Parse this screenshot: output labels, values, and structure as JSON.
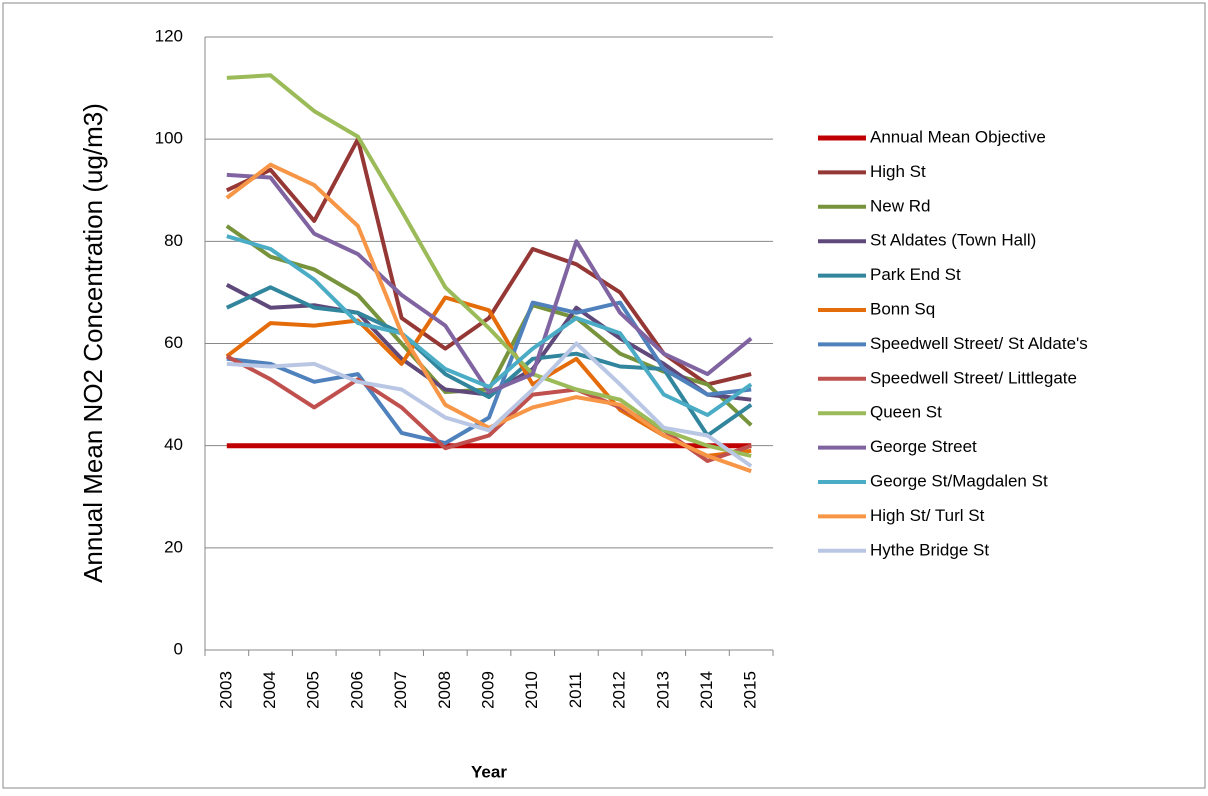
{
  "chart_data": {
    "type": "line",
    "y_label": "Annual Mean NO2 Concentration (ug/m3)",
    "x_label": "Year",
    "categories": [
      "2003",
      "2004",
      "2005",
      "2006",
      "2007",
      "2008",
      "2009",
      "2010",
      "2011",
      "2012",
      "2013",
      "2014",
      "2015"
    ],
    "ylim": [
      0,
      120
    ],
    "yticks": [
      0,
      20,
      40,
      60,
      80,
      100,
      120
    ],
    "grid": true,
    "legend": "right",
    "series": [
      {
        "name": "Annual Mean Objective",
        "color": "#c00000",
        "values": [
          40,
          40,
          40,
          40,
          40,
          40,
          40,
          40,
          40,
          40,
          40,
          40,
          40
        ]
      },
      {
        "name": "High St",
        "color": "#953735",
        "values": [
          90,
          94,
          84,
          100,
          65,
          59,
          65,
          78.5,
          75.5,
          70,
          58,
          52,
          54
        ]
      },
      {
        "name": "New Rd",
        "color": "#77933c",
        "values": [
          83,
          77,
          74.5,
          69.5,
          60,
          50.5,
          51,
          67.5,
          65,
          58,
          54.5,
          52,
          44
        ]
      },
      {
        "name": "St Aldates (Town Hall)",
        "color": "#5f497a",
        "values": [
          71.5,
          67,
          67.5,
          66,
          57,
          51,
          50,
          55,
          67,
          61,
          56,
          50,
          49
        ]
      },
      {
        "name": "Park End St",
        "color": "#31859c",
        "values": [
          67,
          71,
          67,
          66,
          62,
          54,
          49.5,
          57,
          58,
          55.5,
          55,
          42,
          48
        ]
      },
      {
        "name": "Bonn Sq",
        "color": "#e46c0a",
        "values": [
          57.5,
          64,
          63.5,
          64.5,
          56,
          69,
          66.5,
          52,
          57,
          47,
          42,
          38,
          39
        ]
      },
      {
        "name": "Speedwell Street/ St Aldate's",
        "color": "#4f81bd",
        "values": [
          57,
          56,
          52.5,
          54,
          42.5,
          40.5,
          45.5,
          68,
          66,
          68,
          55,
          50,
          51
        ]
      },
      {
        "name": "Speedwell Street/ Littlegate",
        "color": "#c0504d",
        "values": [
          57.5,
          53,
          47.5,
          53,
          47.5,
          39.5,
          42,
          50,
          51,
          47.5,
          43,
          37,
          40
        ]
      },
      {
        "name": "Queen St",
        "color": "#9bbb59",
        "values": [
          112,
          112.5,
          105.5,
          100.5,
          86,
          71,
          63,
          54,
          51,
          49,
          43,
          40,
          38
        ]
      },
      {
        "name": "George Street",
        "color": "#8064a2",
        "values": [
          93,
          92.5,
          81.5,
          77.5,
          69.5,
          63.5,
          50.5,
          54,
          80,
          66,
          58,
          54,
          61
        ]
      },
      {
        "name": "George St/Magdalen St",
        "color": "#4bacc6",
        "values": [
          81,
          78.5,
          72.5,
          64,
          62,
          55,
          51.5,
          59,
          65,
          62,
          50,
          46,
          52
        ]
      },
      {
        "name": "High St/ Turl St",
        "color": "#f79646",
        "values": [
          88.5,
          95,
          91,
          83,
          62,
          48,
          43.5,
          47.5,
          49.5,
          48,
          42,
          38,
          35
        ]
      },
      {
        "name": "Hythe Bridge St",
        "color": "#b9c7e4",
        "values": [
          56,
          55.5,
          56,
          52.5,
          51,
          45.5,
          43,
          51,
          60,
          52,
          43.5,
          42,
          36
        ]
      }
    ]
  }
}
